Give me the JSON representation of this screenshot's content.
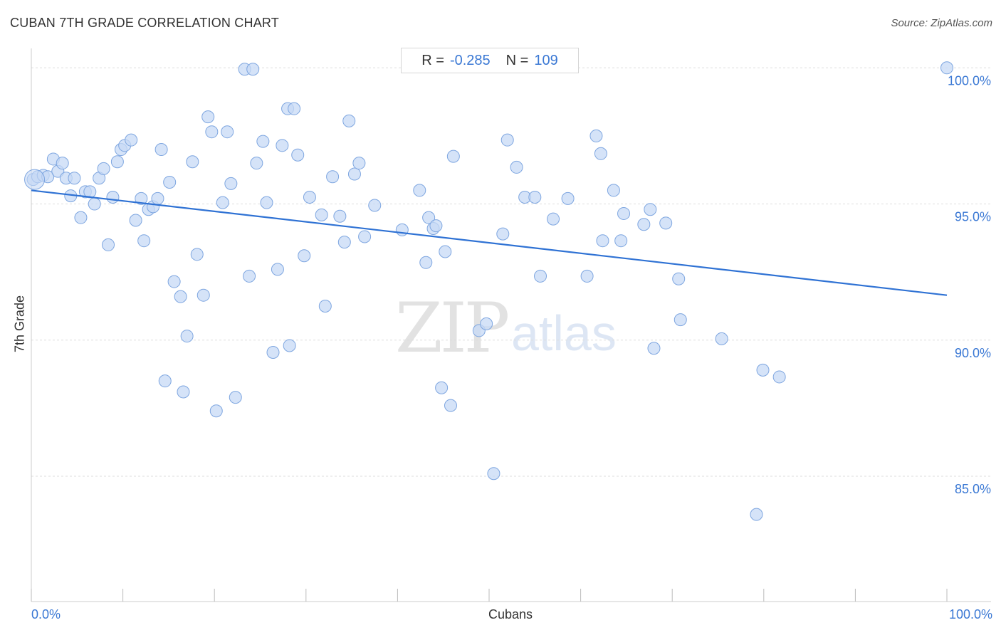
{
  "title": "CUBAN 7TH GRADE CORRELATION CHART",
  "source": "Source: ZipAtlas.com",
  "stats": {
    "r_label": "R =",
    "r_value": "-0.285",
    "n_label": "N =",
    "n_value": "109"
  },
  "watermark": {
    "zip": "ZIP",
    "atlas": "atlas"
  },
  "colors": {
    "point_fill": "#c7d9f5",
    "point_stroke": "#7ea6e0",
    "line": "#2f72d4",
    "tick_text": "#3a78d4",
    "grid": "#dddddd"
  },
  "chart_data": {
    "type": "scatter",
    "title": "CUBAN 7TH GRADE CORRELATION CHART",
    "xlabel": "Cubans",
    "ylabel": "7th Grade",
    "xlim": [
      0,
      100
    ],
    "ylim": [
      80.4,
      100.4
    ],
    "x_tick_labels": [
      "0.0%",
      "100.0%"
    ],
    "y_ticks": [
      {
        "value": 100,
        "label": "100.0%"
      },
      {
        "value": 95,
        "label": "95.0%"
      },
      {
        "value": 90,
        "label": "90.0%"
      },
      {
        "value": 85,
        "label": "85.0%"
      }
    ],
    "grid": true,
    "trendline": {
      "x": [
        0,
        100
      ],
      "y": [
        95.5,
        91.65
      ]
    },
    "points": [
      [
        0.2,
        95.9
      ],
      [
        0.7,
        96.0
      ],
      [
        1.3,
        96.05
      ],
      [
        1.8,
        96.0
      ],
      [
        2.4,
        96.65
      ],
      [
        2.9,
        96.2
      ],
      [
        3.4,
        96.5
      ],
      [
        3.8,
        95.95
      ],
      [
        4.3,
        95.3
      ],
      [
        4.7,
        95.95
      ],
      [
        5.4,
        94.5
      ],
      [
        5.9,
        95.45
      ],
      [
        6.4,
        95.45
      ],
      [
        6.9,
        95.0
      ],
      [
        7.4,
        95.95
      ],
      [
        7.9,
        96.3
      ],
      [
        8.4,
        93.5
      ],
      [
        8.9,
        95.25
      ],
      [
        9.4,
        96.55
      ],
      [
        9.8,
        97.0
      ],
      [
        10.2,
        97.15
      ],
      [
        10.9,
        97.35
      ],
      [
        11.4,
        94.4
      ],
      [
        12.0,
        95.2
      ],
      [
        12.3,
        93.65
      ],
      [
        12.8,
        94.8
      ],
      [
        13.3,
        94.9
      ],
      [
        13.8,
        95.2
      ],
      [
        14.2,
        97.0
      ],
      [
        14.6,
        88.5
      ],
      [
        15.1,
        95.8
      ],
      [
        15.6,
        92.15
      ],
      [
        16.3,
        91.6
      ],
      [
        16.6,
        88.1
      ],
      [
        17.0,
        90.15
      ],
      [
        17.6,
        96.55
      ],
      [
        18.1,
        93.15
      ],
      [
        18.8,
        91.65
      ],
      [
        19.3,
        98.2
      ],
      [
        19.7,
        97.65
      ],
      [
        20.2,
        87.4
      ],
      [
        20.9,
        95.05
      ],
      [
        21.4,
        97.65
      ],
      [
        21.8,
        95.75
      ],
      [
        22.3,
        87.9
      ],
      [
        23.3,
        99.95
      ],
      [
        23.8,
        92.35
      ],
      [
        24.2,
        99.95
      ],
      [
        24.6,
        96.5
      ],
      [
        25.3,
        97.3
      ],
      [
        25.7,
        95.05
      ],
      [
        26.4,
        89.55
      ],
      [
        26.9,
        92.6
      ],
      [
        27.4,
        97.15
      ],
      [
        28.0,
        98.5
      ],
      [
        28.2,
        89.8
      ],
      [
        28.7,
        98.5
      ],
      [
        29.1,
        96.8
      ],
      [
        29.8,
        93.1
      ],
      [
        30.4,
        95.25
      ],
      [
        31.7,
        94.6
      ],
      [
        32.1,
        91.25
      ],
      [
        32.9,
        96.0
      ],
      [
        33.7,
        94.55
      ],
      [
        34.2,
        93.6
      ],
      [
        34.7,
        98.05
      ],
      [
        35.3,
        96.1
      ],
      [
        35.8,
        96.5
      ],
      [
        36.4,
        93.8
      ],
      [
        37.5,
        94.95
      ],
      [
        40.5,
        94.05
      ],
      [
        42.4,
        95.5
      ],
      [
        43.1,
        92.85
      ],
      [
        43.4,
        94.5
      ],
      [
        43.9,
        94.1
      ],
      [
        44.2,
        94.2
      ],
      [
        44.8,
        88.25
      ],
      [
        45.2,
        93.25
      ],
      [
        45.8,
        87.6
      ],
      [
        46.1,
        96.75
      ],
      [
        48.9,
        90.35
      ],
      [
        49.7,
        90.6
      ],
      [
        50.5,
        85.1
      ],
      [
        51.5,
        93.9
      ],
      [
        52.0,
        97.35
      ],
      [
        53.0,
        96.35
      ],
      [
        53.9,
        95.25
      ],
      [
        55.0,
        95.25
      ],
      [
        55.6,
        92.35
      ],
      [
        57.0,
        94.45
      ],
      [
        58.6,
        95.2
      ],
      [
        60.7,
        92.35
      ],
      [
        61.7,
        97.5
      ],
      [
        62.2,
        96.85
      ],
      [
        62.4,
        93.65
      ],
      [
        63.6,
        95.5
      ],
      [
        64.4,
        93.65
      ],
      [
        64.7,
        94.65
      ],
      [
        66.9,
        94.25
      ],
      [
        67.6,
        94.8
      ],
      [
        68.0,
        89.7
      ],
      [
        69.3,
        94.3
      ],
      [
        70.7,
        92.25
      ],
      [
        70.9,
        90.75
      ],
      [
        75.4,
        90.05
      ],
      [
        79.2,
        83.6
      ],
      [
        79.9,
        88.9
      ],
      [
        81.7,
        88.65
      ],
      [
        100.0,
        100.0
      ]
    ]
  }
}
